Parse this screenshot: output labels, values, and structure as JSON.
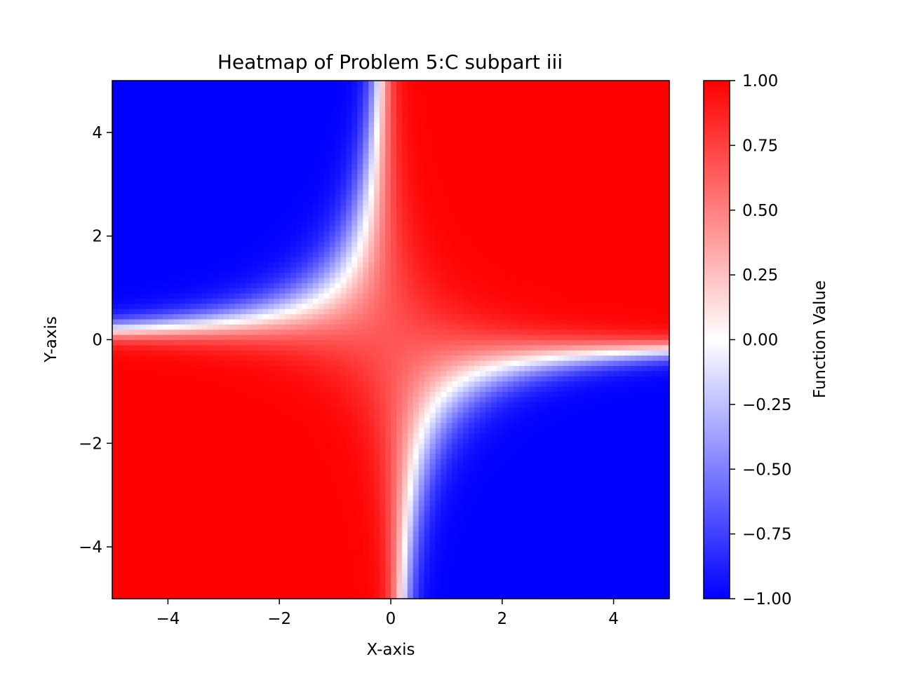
{
  "chart_data": {
    "type": "heatmap",
    "title": "Heatmap of Problem 5:C subpart iii",
    "xlabel": "X-axis",
    "ylabel": "Y-axis",
    "xlim": [
      -5,
      5
    ],
    "ylim": [
      -5,
      5
    ],
    "xticks": [
      -4,
      -2,
      0,
      2,
      4
    ],
    "yticks": [
      -4,
      -2,
      0,
      2,
      4
    ],
    "xtick_labels": [
      "−4",
      "−2",
      "0",
      "2",
      "4"
    ],
    "ytick_labels": [
      "−4",
      "−2",
      "0",
      "2",
      "4"
    ],
    "grid_resolution": 100,
    "colormap": "bwr",
    "colormap_stops": [
      "#0000ff",
      "#ffffff",
      "#ff0000"
    ],
    "value_range": [
      -1,
      1
    ],
    "value_description": "tanh-like saturation: near +0.85 along both axes, -1 where x<0<y and y<0<x with |x·y| large, +1 in first and third quadrants",
    "colorbar": {
      "label": "Function Value",
      "ticks": [
        -1.0,
        -0.75,
        -0.5,
        -0.25,
        0.0,
        0.25,
        0.5,
        0.75,
        1.0
      ],
      "tick_labels": [
        "−1.00",
        "−0.75",
        "−0.50",
        "−0.25",
        "0.00",
        "0.25",
        "0.50",
        "0.75",
        "1.00"
      ]
    },
    "grid": false
  }
}
